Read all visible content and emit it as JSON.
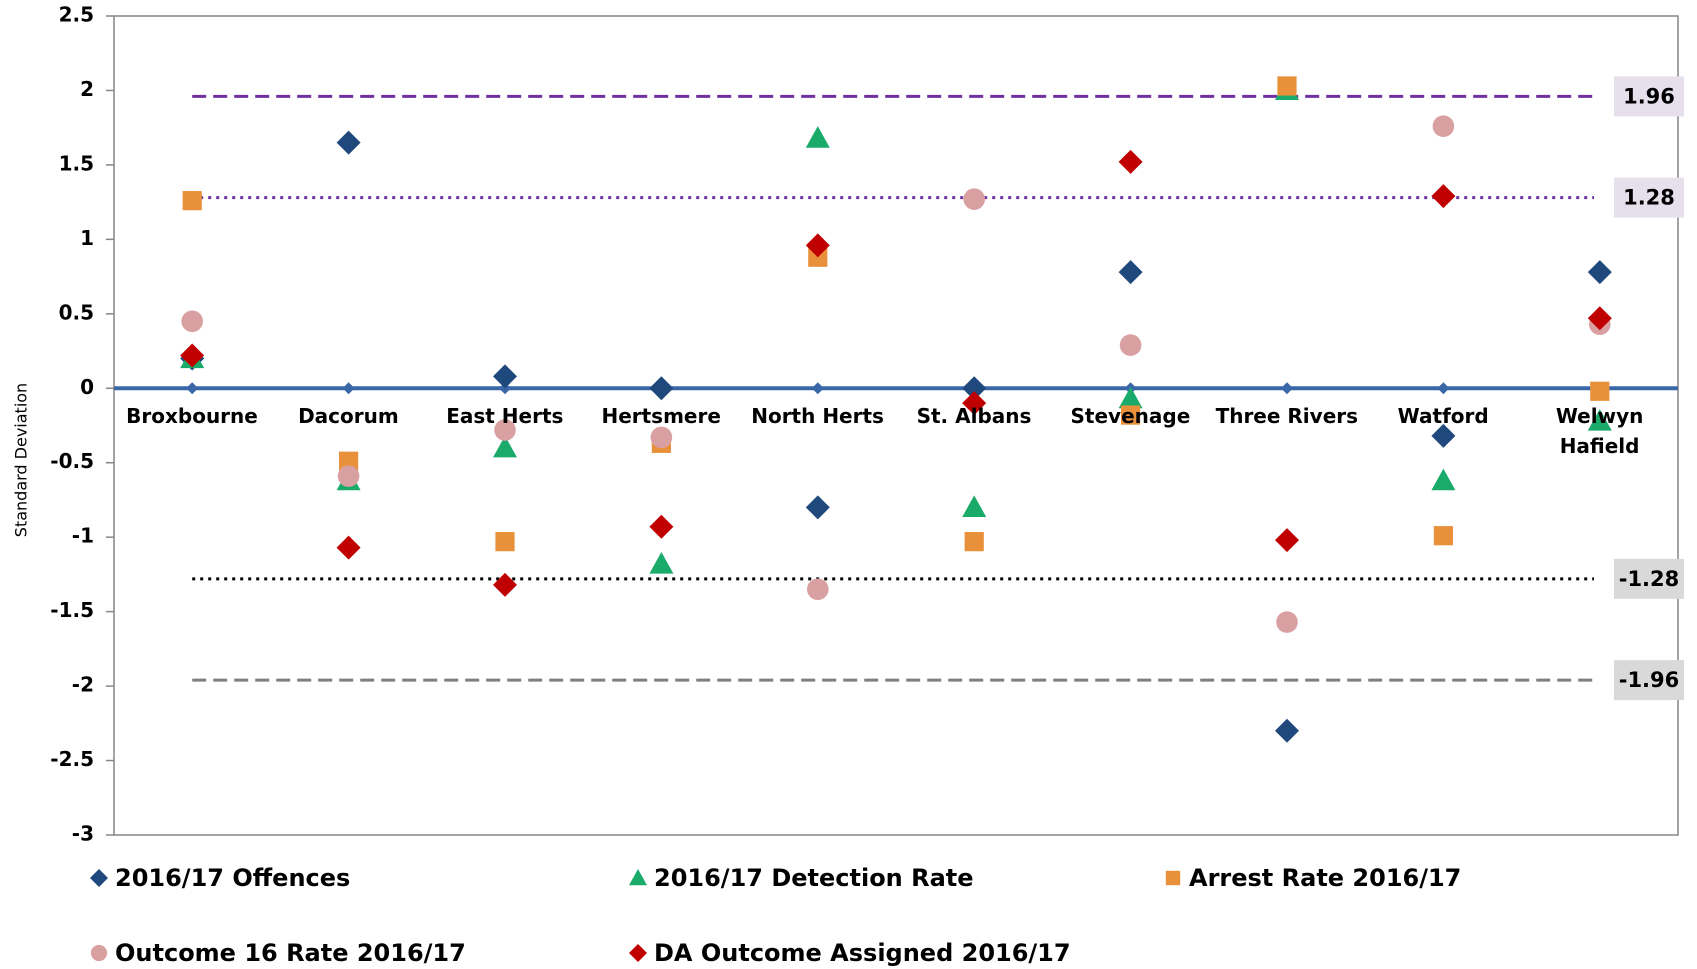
{
  "chart_data": {
    "type": "scatter",
    "y_label": "Standard Deviation",
    "categories": [
      "Broxbourne",
      "Dacorum",
      "East Herts",
      "Hertsmere",
      "North Herts",
      "St. Albans",
      "Stevenage",
      "Three Rivers",
      "Watford",
      "Welwyn\nHafield"
    ],
    "series": [
      {
        "name": "2016/17 Offences",
        "color": "#1f497d",
        "marker": "diamond",
        "values": [
          0.2,
          1.65,
          0.08,
          0,
          -0.8,
          0,
          0.78,
          -2.3,
          -0.32,
          0.78
        ]
      },
      {
        "name": "2016/17 Detection Rate",
        "color": "#1aab6b",
        "marker": "triangle",
        "values": [
          0.2,
          -0.62,
          -0.4,
          -1.18,
          1.68,
          -0.8,
          -0.07,
          2.0,
          -0.62,
          -0.22
        ]
      },
      {
        "name": "Arrest Rate 2016/17",
        "color": "#e8913a",
        "marker": "square",
        "values": [
          1.26,
          -0.49,
          -1.03,
          -0.37,
          0.88,
          -1.03,
          -0.18,
          2.03,
          -0.99,
          -0.02
        ]
      },
      {
        "name": "Outcome 16 Rate 2016/17",
        "color": "#d9a0a2",
        "marker": "circle",
        "values": [
          0.45,
          -0.59,
          -0.28,
          -0.33,
          -1.35,
          1.27,
          0.29,
          -1.57,
          1.76,
          0.43
        ]
      },
      {
        "name": "DA Outcome Assigned 2016/17",
        "color": "#c00000",
        "marker": "diamond",
        "values": [
          0.22,
          -1.07,
          -1.32,
          -0.93,
          0.96,
          -0.1,
          1.52,
          -1.02,
          1.29,
          0.47
        ]
      }
    ],
    "zero_line": {
      "value": 0,
      "color": "#3a67a8"
    },
    "reference_lines": [
      {
        "value": 1.96,
        "label": "1.96",
        "color": "#7030a0",
        "style": "dashed",
        "box": "#e6e0ec"
      },
      {
        "value": 1.28,
        "label": "1.28",
        "color": "#7030a0",
        "style": "dotted",
        "box": "#e6e0ec"
      },
      {
        "value": -1.28,
        "label": "-1.28",
        "color": "#000000",
        "style": "dotted",
        "box": "#d9d9d9"
      },
      {
        "value": -1.96,
        "label": "-1.96",
        "color": "#7f7f7f",
        "style": "dashed",
        "box": "#d9d9d9"
      }
    ],
    "ylim": [
      -3,
      2.5
    ],
    "yticks": [
      -3,
      -2.5,
      -2,
      -1.5,
      -1,
      -0.5,
      0,
      0.5,
      1,
      1.5,
      2,
      2.5
    ],
    "legend": "bottom"
  }
}
